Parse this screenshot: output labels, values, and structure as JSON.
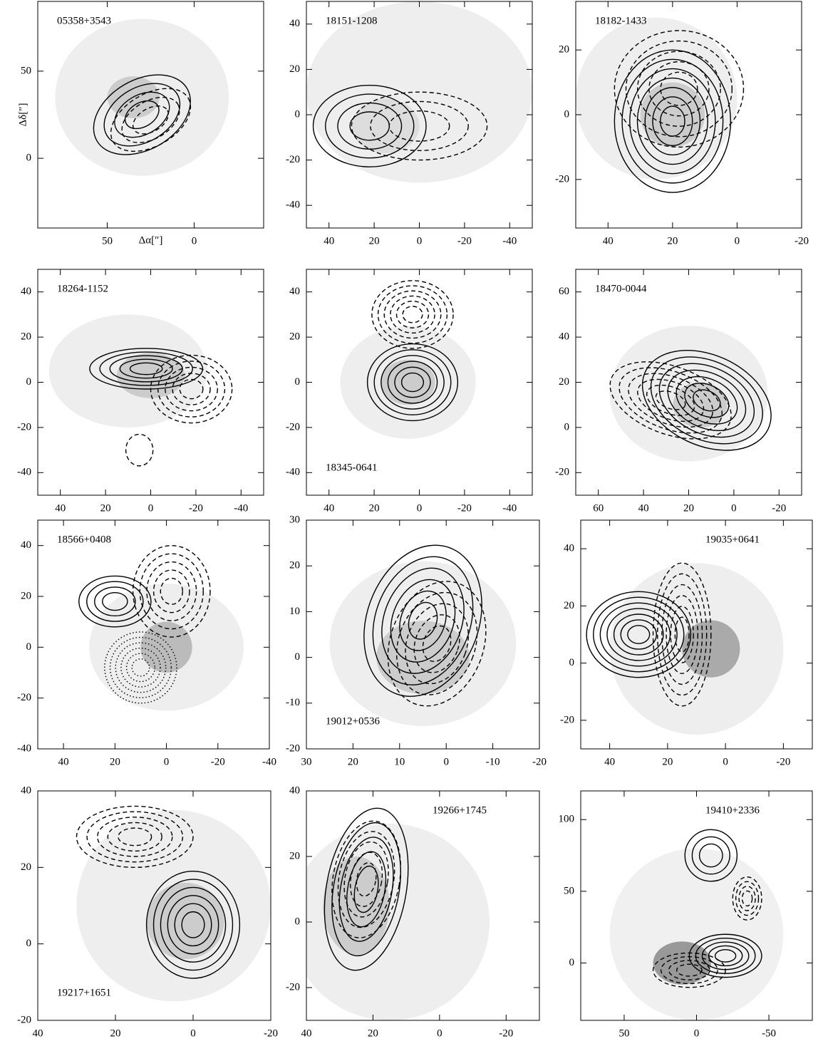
{
  "panels": [
    {
      "label": "05358+3543",
      "xlim": [
        90,
        -40
      ],
      "ylim": [
        -40,
        90
      ],
      "xticks": [
        50,
        0
      ],
      "yticks": [
        50,
        0
      ],
      "xlabel": "Δα[″]",
      "ylabel": "Δδ[″]"
    },
    {
      "label": "18151-1208",
      "xlim": [
        50,
        -50
      ],
      "ylim": [
        -50,
        50
      ],
      "xticks": [
        40,
        20,
        0,
        -20,
        -40
      ],
      "yticks": [
        40,
        20,
        0,
        -20,
        -40
      ]
    },
    {
      "label": "18182-1433",
      "xlim": [
        50,
        -20
      ],
      "ylim": [
        -35,
        35
      ],
      "xticks": [
        40,
        20,
        0,
        -20
      ],
      "yticks": [
        20,
        0,
        -20
      ]
    },
    {
      "label": "18264-1152",
      "xlim": [
        50,
        -50
      ],
      "ylim": [
        -50,
        50
      ],
      "xticks": [
        40,
        20,
        0,
        -20,
        -40
      ],
      "yticks": [
        40,
        20,
        0,
        -20,
        -40
      ]
    },
    {
      "label": "18345-0641",
      "xlim": [
        50,
        -50
      ],
      "ylim": [
        -50,
        50
      ],
      "xticks": [
        40,
        20,
        0,
        -20,
        -40
      ],
      "yticks": [
        40,
        20,
        0,
        -20,
        -40
      ]
    },
    {
      "label": "18470-0044",
      "xlim": [
        70,
        -30
      ],
      "ylim": [
        -30,
        70
      ],
      "xticks": [
        60,
        40,
        20,
        0,
        -20
      ],
      "yticks": [
        60,
        40,
        20,
        0,
        -20
      ]
    },
    {
      "label": "18566+0408",
      "xlim": [
        50,
        -40
      ],
      "ylim": [
        -40,
        50
      ],
      "xticks": [
        40,
        20,
        0,
        -20,
        -40
      ],
      "yticks": [
        40,
        20,
        0,
        -20,
        -40
      ]
    },
    {
      "label": "19012+0536",
      "xlim": [
        30,
        -20
      ],
      "ylim": [
        -20,
        30
      ],
      "xticks": [
        30,
        20,
        10,
        0,
        -10,
        -20
      ],
      "yticks": [
        30,
        20,
        10,
        0,
        -10,
        -20
      ]
    },
    {
      "label": "19035+0641",
      "xlim": [
        50,
        -30
      ],
      "ylim": [
        -30,
        50
      ],
      "xticks": [
        40,
        20,
        0,
        -20
      ],
      "yticks": [
        40,
        20,
        0,
        -20
      ]
    },
    {
      "label": "19217+1651",
      "xlim": [
        40,
        -20
      ],
      "ylim": [
        -20,
        40
      ],
      "xticks": [
        40,
        20,
        0,
        -20
      ],
      "yticks": [
        40,
        20,
        0,
        -20
      ]
    },
    {
      "label": "19266+1745",
      "xlim": [
        40,
        -30
      ],
      "ylim": [
        -30,
        40
      ],
      "xticks": [
        40,
        20,
        0,
        -20
      ],
      "yticks": [
        40,
        20,
        0,
        -20
      ]
    },
    {
      "label": "19410+2336",
      "xlim": [
        80,
        -80
      ],
      "ylim": [
        -40,
        120
      ],
      "xticks": [
        50,
        0,
        -50
      ],
      "yticks": [
        100,
        50,
        0
      ]
    }
  ]
}
